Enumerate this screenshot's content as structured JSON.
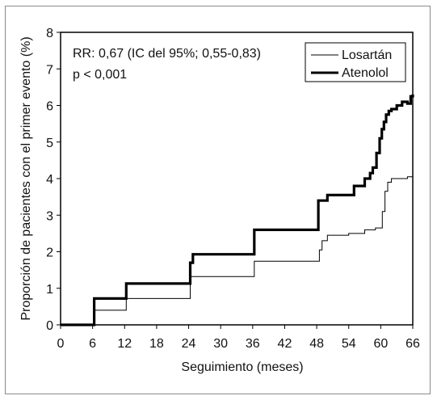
{
  "chart_data": {
    "type": "line",
    "step": true,
    "xlabel": "Seguimiento (meses)",
    "ylabel": "Proporción de pacientes con el primer evento (%)",
    "xlim": [
      0,
      66
    ],
    "ylim": [
      0,
      8
    ],
    "xticks": [
      0,
      6,
      12,
      18,
      24,
      30,
      36,
      42,
      48,
      54,
      60,
      66
    ],
    "yticks": [
      0,
      1,
      2,
      3,
      4,
      5,
      6,
      7,
      8
    ],
    "grid": false,
    "legend_position": "top-right",
    "annotations": [
      "RR: 0,67 (IC del 95%; 0,55-0,83)",
      "p < 0,001"
    ],
    "series": [
      {
        "name": "Losartán",
        "line_weight": "thin",
        "color": "#000000",
        "x": [
          0,
          6,
          6.3,
          12,
          12.3,
          24,
          24.3,
          36,
          36.3,
          48,
          48.5,
          49,
          50,
          54,
          57,
          59,
          60.3,
          60.8,
          61.3,
          62,
          63,
          65,
          66
        ],
        "y": [
          0,
          0,
          0.4,
          0.4,
          0.72,
          0.72,
          1.32,
          1.32,
          1.74,
          1.74,
          2.05,
          2.3,
          2.45,
          2.5,
          2.6,
          2.65,
          3.1,
          3.65,
          3.9,
          4.0,
          4.0,
          4.05,
          4.2
        ]
      },
      {
        "name": "Atenolol",
        "line_weight": "thick",
        "color": "#000000",
        "x": [
          0,
          6,
          6.3,
          12,
          12.3,
          24,
          24.3,
          24.8,
          36,
          36.3,
          48,
          48.3,
          50,
          55,
          57,
          58,
          58.5,
          59.2,
          59.8,
          60.2,
          60.6,
          61,
          61.5,
          62,
          63,
          64,
          65,
          65.6,
          66
        ],
        "y": [
          0,
          0,
          0.72,
          0.72,
          1.13,
          1.13,
          1.7,
          1.93,
          1.93,
          2.6,
          2.6,
          3.4,
          3.55,
          3.8,
          4.0,
          4.15,
          4.3,
          4.7,
          5.1,
          5.35,
          5.55,
          5.75,
          5.85,
          5.9,
          6.0,
          6.1,
          6.05,
          6.25,
          6.3
        ]
      }
    ]
  }
}
